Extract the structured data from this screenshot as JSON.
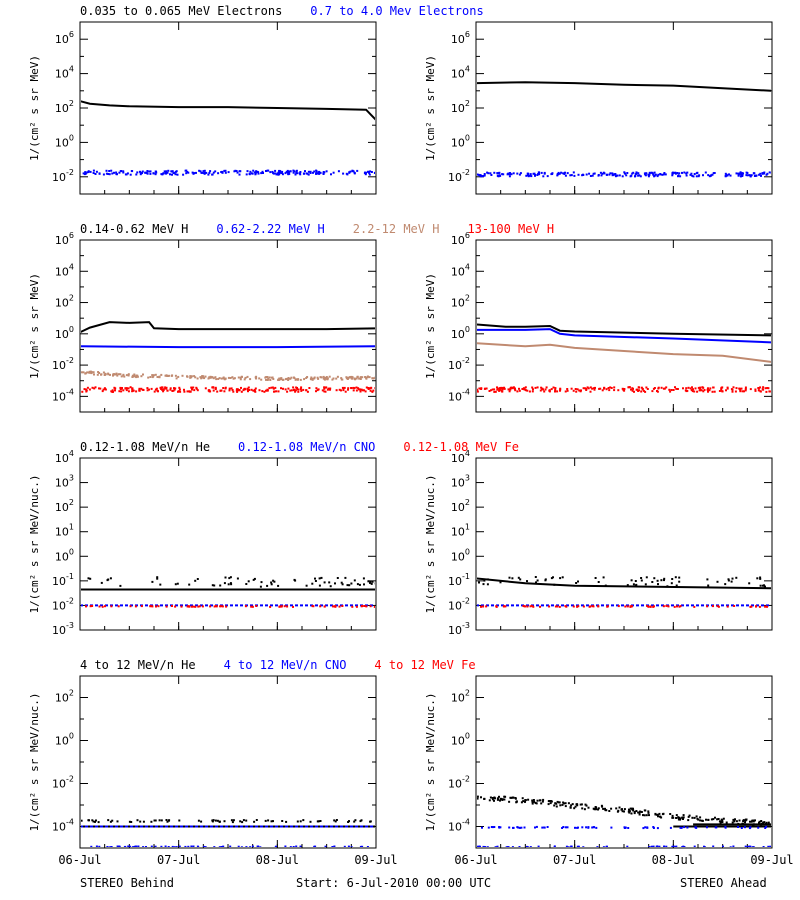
{
  "colors": {
    "black": "#000000",
    "blue": "#0000ff",
    "tan": "#c08a70",
    "red": "#ff0000"
  },
  "footer": {
    "left": "STEREO Behind",
    "center": "Start:  6-Jul-2010 00:00 UTC",
    "right": "STEREO Ahead"
  },
  "chart_data": [
    {
      "type": "scatter",
      "row_legend": [
        {
          "text": "0.035 to 0.065 MeV Electrons",
          "color": "#000000"
        },
        {
          "text": "0.7 to 4.0 Mev Electrons",
          "color": "#0000ff"
        }
      ],
      "ylabel": "1/(cm² s sr MeV)",
      "ytick_exponents": [
        -2,
        0,
        2,
        4,
        6
      ],
      "ylim_log10": [
        -3,
        7
      ],
      "xtick_labels": [
        "06-Jul",
        "07-Jul",
        "08-Jul",
        "09-Jul"
      ],
      "xlim_days": [
        0,
        3
      ],
      "panels": [
        {
          "name": "STEREO Behind",
          "series": [
            {
              "color": "#000000",
              "mode": "line",
              "points": [
                [
                  0,
                  2.4
                ],
                [
                  0.1,
                  2.25
                ],
                [
                  0.3,
                  2.15
                ],
                [
                  0.5,
                  2.1
                ],
                [
                  1,
                  2.05
                ],
                [
                  1.5,
                  2.05
                ],
                [
                  2,
                  2.0
                ],
                [
                  2.5,
                  1.95
                ],
                [
                  2.9,
                  1.9
                ],
                [
                  2.95,
                  1.6
                ],
                [
                  3,
                  1.3
                ]
              ]
            },
            {
              "color": "#0000ff",
              "mode": "band",
              "level": -1.7,
              "spread": 0.12
            }
          ]
        },
        {
          "name": "STEREO Ahead",
          "series": [
            {
              "color": "#000000",
              "mode": "line",
              "points": [
                [
                  0,
                  3.45
                ],
                [
                  0.5,
                  3.5
                ],
                [
                  1,
                  3.45
                ],
                [
                  1.5,
                  3.35
                ],
                [
                  2,
                  3.3
                ],
                [
                  2.5,
                  3.15
                ],
                [
                  3,
                  3.0
                ]
              ]
            },
            {
              "color": "#0000ff",
              "mode": "band",
              "level": -1.8,
              "spread": 0.12
            }
          ]
        }
      ]
    },
    {
      "type": "scatter",
      "row_legend": [
        {
          "text": "0.14-0.62 MeV H",
          "color": "#000000"
        },
        {
          "text": "0.62-2.22 MeV H",
          "color": "#0000ff"
        },
        {
          "text": "2.2-12 MeV H",
          "color": "#c08a70"
        },
        {
          "text": "13-100 MeV H",
          "color": "#ff0000"
        }
      ],
      "ylabel": "1/(cm² s sr MeV)",
      "ytick_exponents": [
        -4,
        -2,
        0,
        2,
        4,
        6
      ],
      "ylim_log10": [
        -5,
        6
      ],
      "xtick_labels": [
        "06-Jul",
        "07-Jul",
        "08-Jul",
        "09-Jul"
      ],
      "xlim_days": [
        0,
        3
      ],
      "panels": [
        {
          "name": "STEREO Behind",
          "series": [
            {
              "color": "#000000",
              "mode": "line",
              "points": [
                [
                  0,
                  0.1
                ],
                [
                  0.1,
                  0.4
                ],
                [
                  0.3,
                  0.75
                ],
                [
                  0.5,
                  0.7
                ],
                [
                  0.7,
                  0.75
                ],
                [
                  0.75,
                  0.35
                ],
                [
                  1,
                  0.3
                ],
                [
                  2,
                  0.3
                ],
                [
                  2.5,
                  0.3
                ],
                [
                  3,
                  0.35
                ]
              ]
            },
            {
              "color": "#0000ff",
              "mode": "line",
              "points": [
                [
                  0,
                  -0.8
                ],
                [
                  1,
                  -0.85
                ],
                [
                  2,
                  -0.85
                ],
                [
                  3,
                  -0.8
                ]
              ]
            },
            {
              "color": "#c08a70",
              "mode": "band",
              "points": [
                [
                  0,
                  -2.4
                ],
                [
                  0.5,
                  -2.6
                ],
                [
                  1,
                  -2.7
                ],
                [
                  2,
                  -2.8
                ],
                [
                  3,
                  -2.75
                ]
              ],
              "spread": 0.1
            },
            {
              "color": "#ff0000",
              "mode": "band",
              "level": -3.5,
              "spread": 0.15
            }
          ]
        },
        {
          "name": "STEREO Ahead",
          "series": [
            {
              "color": "#000000",
              "mode": "line",
              "points": [
                [
                  0,
                  0.6
                ],
                [
                  0.3,
                  0.45
                ],
                [
                  0.5,
                  0.45
                ],
                [
                  0.75,
                  0.5
                ],
                [
                  0.85,
                  0.2
                ],
                [
                  1,
                  0.15
                ],
                [
                  2,
                  0.0
                ],
                [
                  3,
                  -0.1
                ]
              ]
            },
            {
              "color": "#0000ff",
              "mode": "line",
              "points": [
                [
                  0,
                  0.25
                ],
                [
                  0.5,
                  0.25
                ],
                [
                  0.75,
                  0.3
                ],
                [
                  0.85,
                  0.0
                ],
                [
                  1,
                  -0.1
                ],
                [
                  2,
                  -0.3
                ],
                [
                  3,
                  -0.55
                ]
              ]
            },
            {
              "color": "#c08a70",
              "mode": "line",
              "points": [
                [
                  0,
                  -0.6
                ],
                [
                  0.5,
                  -0.8
                ],
                [
                  0.75,
                  -0.7
                ],
                [
                  1,
                  -0.9
                ],
                [
                  1.5,
                  -1.1
                ],
                [
                  2,
                  -1.3
                ],
                [
                  2.5,
                  -1.4
                ],
                [
                  3,
                  -1.8
                ]
              ]
            },
            {
              "color": "#ff0000",
              "mode": "band",
              "level": -3.5,
              "spread": 0.15
            }
          ]
        }
      ]
    },
    {
      "type": "scatter",
      "row_legend": [
        {
          "text": "0.12-1.08 MeV/n He",
          "color": "#000000"
        },
        {
          "text": "0.12-1.08 MeV/n CNO",
          "color": "#0000ff"
        },
        {
          "text": "0.12-1.08 MeV Fe",
          "color": "#ff0000"
        }
      ],
      "ylabel": "1/(cm² s sr MeV/nuc.)",
      "ytick_exponents": [
        -3,
        -2,
        -1,
        0,
        1,
        2,
        3,
        4
      ],
      "ylim_log10": [
        -3,
        4
      ],
      "xtick_labels": [
        "06-Jul",
        "07-Jul",
        "08-Jul",
        "09-Jul"
      ],
      "xlim_days": [
        0,
        3
      ],
      "panels": [
        {
          "name": "STEREO Behind",
          "series": [
            {
              "color": "#000000",
              "mode": "line",
              "points": [
                [
                  0,
                  -1.35
                ],
                [
                  3,
                  -1.35
                ]
              ]
            },
            {
              "color": "#000000",
              "mode": "scatter",
              "level": -1.0,
              "spread": 0.2
            },
            {
              "color": "#0000ff",
              "mode": "line",
              "points": [
                [
                  0,
                  -2.0
                ],
                [
                  3,
                  -2.0
                ]
              ],
              "dashed": true
            },
            {
              "color": "#ff0000",
              "mode": "scatter",
              "level": -2.0,
              "spread": 0.02
            }
          ]
        },
        {
          "name": "STEREO Ahead",
          "series": [
            {
              "color": "#000000",
              "mode": "line",
              "points": [
                [
                  0,
                  -0.9
                ],
                [
                  0.5,
                  -1.1
                ],
                [
                  1,
                  -1.2
                ],
                [
                  3,
                  -1.3
                ]
              ]
            },
            {
              "color": "#000000",
              "mode": "scatter",
              "level": -1.0,
              "spread": 0.2
            },
            {
              "color": "#0000ff",
              "mode": "line",
              "points": [
                [
                  0,
                  -2.0
                ],
                [
                  3,
                  -2.0
                ]
              ],
              "dashed": true
            },
            {
              "color": "#ff0000",
              "mode": "scatter",
              "level": -2.0,
              "spread": 0.02
            }
          ]
        }
      ]
    },
    {
      "type": "scatter",
      "row_legend": [
        {
          "text": "4 to 12 MeV/n He",
          "color": "#000000"
        },
        {
          "text": "4 to 12 MeV/n CNO",
          "color": "#0000ff"
        },
        {
          "text": "4 to 12 MeV Fe",
          "color": "#ff0000"
        }
      ],
      "ylabel": "1/(cm² s sr MeV/nuc.)",
      "ytick_exponents": [
        -4,
        -2,
        0,
        2
      ],
      "ylim_log10": [
        -5,
        3
      ],
      "xtick_labels": [
        "06-Jul",
        "07-Jul",
        "08-Jul",
        "09-Jul"
      ],
      "xlim_days": [
        0,
        3
      ],
      "panels": [
        {
          "name": "STEREO Behind",
          "series": [
            {
              "color": "#000000",
              "mode": "line",
              "points": [
                [
                  0,
                  -4.0
                ],
                [
                  3,
                  -4.0
                ]
              ]
            },
            {
              "color": "#000000",
              "mode": "scatter",
              "level": -3.7,
              "spread": 0.05
            },
            {
              "color": "#0000ff",
              "mode": "line",
              "points": [
                [
                  0,
                  -4.0
                ],
                [
                  3,
                  -4.0
                ]
              ],
              "dashed": true
            },
            {
              "color": "#0000ff",
              "mode": "scatter",
              "level": -4.9,
              "spread": 0.02
            }
          ]
        },
        {
          "name": "STEREO Ahead",
          "series": [
            {
              "color": "#000000",
              "mode": "band",
              "points": [
                [
                  0,
                  -2.6
                ],
                [
                  0.5,
                  -2.75
                ],
                [
                  1,
                  -3.0
                ],
                [
                  1.5,
                  -3.2
                ],
                [
                  2,
                  -3.5
                ],
                [
                  2.5,
                  -3.7
                ],
                [
                  3,
                  -3.8
                ]
              ],
              "spread": 0.12
            },
            {
              "color": "#000000",
              "mode": "line",
              "points": [
                [
                  2.2,
                  -3.9
                ],
                [
                  3,
                  -3.9
                ]
              ]
            },
            {
              "color": "#000000",
              "mode": "line",
              "points": [
                [
                  2.0,
                  -4.0
                ],
                [
                  3,
                  -4.0
                ]
              ]
            },
            {
              "color": "#0000ff",
              "mode": "scatter",
              "level": -4.0,
              "spread": 0.03
            },
            {
              "color": "#0000ff",
              "mode": "scatter",
              "level": -4.9,
              "spread": 0.02
            }
          ]
        }
      ]
    }
  ]
}
